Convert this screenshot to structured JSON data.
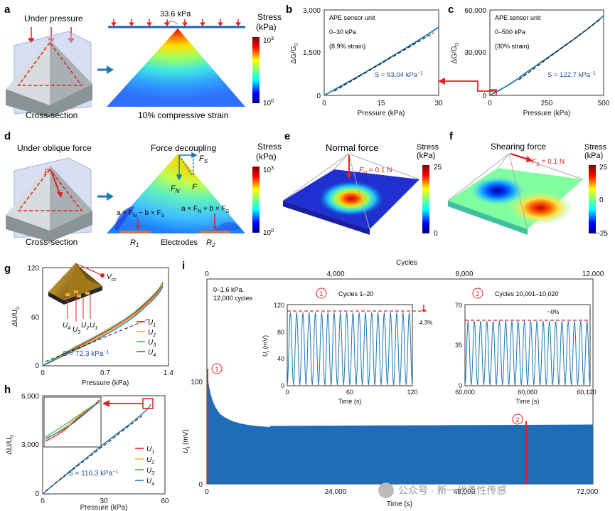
{
  "panels": {
    "a": {
      "letter": "a",
      "top": "Under pressure",
      "pressure": "33.6 kPa",
      "stress": "Stress",
      "unit": "(kPa)",
      "cb_top": "10",
      "cb_top_exp": "3",
      "cb_bot": "10",
      "cb_bot_exp": "0",
      "bottom_left": "Cross-section",
      "bottom_right": "10% compressive strain"
    },
    "b": {
      "letter": "b",
      "title": "APE sensor unit",
      "range": "0–30 kPa",
      "strain": "(8.9% strain)",
      "slope": "S = 93.04 kPa",
      "slope_exp": "−1",
      "ylabel": "ΔG/G",
      "ylabel_sub": "0",
      "xlabel": "Pressure (kPa)",
      "yticks": [
        "0",
        "1,500",
        "3,000"
      ],
      "xticks": [
        "0",
        "15",
        "30"
      ]
    },
    "c": {
      "letter": "c",
      "title": "APE sensor unit",
      "range": "0–500 kPa",
      "strain": "(30% strain)",
      "slope": "S = 122.7 kPa",
      "slope_exp": "−1",
      "ylabel": "ΔG/G",
      "ylabel_sub": "0",
      "xlabel": "Pressure (kPa)",
      "yticks": [
        "0",
        "30,000",
        "60,000"
      ],
      "xticks": [
        "0",
        "250",
        "500"
      ]
    },
    "d": {
      "letter": "d",
      "top": "Under oblique force",
      "force": "F",
      "decoupling": "Force decoupling",
      "fs": "F",
      "fs_sub": "S",
      "fn": "F",
      "fn_sub": "N",
      "ff": "F",
      "eq_left": "a × F",
      "eq_left_n": "N",
      "eq_left_mid": " − b × F",
      "eq_left_s": "S",
      "eq_right": "a × F",
      "eq_right_n": "N",
      "eq_right_mid": " + b × F",
      "eq_right_s": "S",
      "r1": "R",
      "r1_sub": "1",
      "electrodes": "Electrodes",
      "r2": "R",
      "r2_sub": "2",
      "stress": "Stress",
      "unit": "(kPa)",
      "cb_top": "10",
      "cb_top_exp": "3",
      "cb_bot": "10",
      "cb_bot_exp": "0",
      "bottom_left": "Cross-section"
    },
    "e": {
      "letter": "e",
      "title": "Normal force",
      "fn": "F",
      "fn_sub": "N",
      "fn_val": " = 0.1 N",
      "stress": "Stress",
      "unit": "(kPa)",
      "cb_top": "25",
      "cb_bot": "0"
    },
    "f": {
      "letter": "f",
      "title": "Shearing force",
      "fs": "F",
      "fs_sub": "S",
      "fs_val": " = 0.1 N",
      "stress": "Stress",
      "unit": "(kPa)",
      "cb_top": "25",
      "cb_mid": "0",
      "cb_bot": "−25"
    },
    "g": {
      "letter": "g",
      "vcc": "V",
      "vcc_sub": "cc",
      "u4": "U",
      "u4_sub": "4",
      "u3": "U",
      "u3_sub": "3",
      "u2": "U",
      "u2_sub": "2",
      "u1": "U",
      "u1_sub": "1",
      "slope": "S = 72.3 kPa",
      "slope_exp": "−1",
      "ylabel": "ΔU/U",
      "ylabel_sub": "0",
      "xlabel": "Pressure (kPa)",
      "yticks": [
        "0",
        "60",
        "120"
      ],
      "xticks": [
        "0",
        "0.7",
        "1.4"
      ],
      "legend": [
        {
          "n": "U",
          "s": "1",
          "c": "#e41a1c"
        },
        {
          "n": "U",
          "s": "2",
          "c": "#f2b134"
        },
        {
          "n": "U",
          "s": "3",
          "c": "#4daf4a"
        },
        {
          "n": "U",
          "s": "4",
          "c": "#1f78b4"
        }
      ]
    },
    "h": {
      "letter": "h",
      "slope": "S = 110.3 kPa",
      "slope_exp": "−1",
      "ylabel": "ΔU/U",
      "ylabel_sub": "0",
      "xlabel": "Pressure (kPa)",
      "yticks": [
        "0",
        "3,000",
        "6,000"
      ],
      "xticks": [
        "0",
        "30",
        "60"
      ],
      "legend": [
        {
          "n": "U",
          "s": "1",
          "c": "#e41a1c"
        },
        {
          "n": "U",
          "s": "2",
          "c": "#f2b134"
        },
        {
          "n": "U",
          "s": "3",
          "c": "#4daf4a"
        },
        {
          "n": "U",
          "s": "4",
          "c": "#1f78b4"
        }
      ]
    },
    "i": {
      "letter": "i",
      "cycles": "Cycles",
      "cycle_ticks": [
        "0",
        "4,000",
        "8,000",
        "12,000"
      ],
      "info1": "0–1.6 kPa,",
      "info2": "12,000 cycles",
      "ylabel": "U",
      "ylabel_sub": "t",
      "ylabel_unit": " (mV)",
      "ytick": "100",
      "yzero": "0",
      "xlabel": "Time (s)",
      "xticks": [
        "0",
        "24,000",
        "48,000",
        "72,000"
      ],
      "inset1": {
        "num": "1",
        "title": "Cycles 1–20",
        "decay": "4.3%",
        "ylabel": "U",
        "ylabel_sub": "t",
        "ylabel_unit": " (mV)",
        "yticks": [
          "0",
          "40",
          "80",
          "120"
        ],
        "xticks": [
          "0",
          "60",
          "120"
        ],
        "xlabel": "Time (s)"
      },
      "inset2": {
        "num": "2",
        "title": "Cycles 10,001–10,020",
        "decay": "~0%",
        "yticks": [
          "0",
          "35",
          "70"
        ],
        "xticks": [
          "60,000",
          "60,060",
          "60,120"
        ],
        "xlabel": "Time (s)"
      },
      "marker1": "1",
      "marker2": "2"
    },
    "watermark": "公众号 · 新一代柔性传感"
  }
}
